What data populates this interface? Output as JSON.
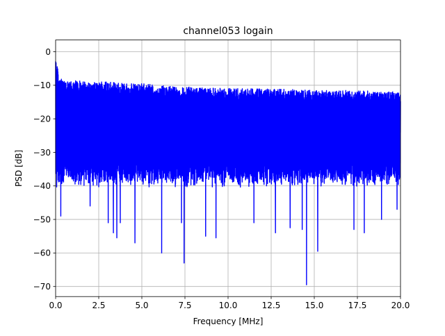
{
  "chart_data": {
    "type": "line",
    "title": "channel053 logain",
    "xlabel": "Frequency [MHz]",
    "ylabel": "PSD [dB]",
    "xlim": [
      0,
      20
    ],
    "ylim": [
      -73,
      3.5
    ],
    "grid": true,
    "x_ticks": [
      0,
      2.5,
      5,
      7.5,
      10,
      12.5,
      15,
      17.5,
      20
    ],
    "x_tick_labels": [
      "0.0",
      "2.5",
      "5.0",
      "7.5",
      "10.0",
      "12.5",
      "15.0",
      "17.5",
      "20.0"
    ],
    "y_ticks": [
      0,
      -10,
      -20,
      -30,
      -40,
      -50,
      -60,
      -70
    ],
    "y_tick_labels": [
      "0",
      "−10",
      "−20",
      "−30",
      "−40",
      "−50",
      "−60",
      "−70"
    ],
    "series": [
      {
        "color": "#0000ff",
        "description_upper_envelope": {
          "x": [
            0,
            0.05,
            0.15,
            0.3,
            0.6,
            1.0,
            2.0,
            3.0,
            4.0,
            5.0,
            6.0,
            7.5,
            10.0,
            12.5,
            15.0,
            17.5,
            20.0
          ],
          "y": [
            -2,
            -3,
            -6,
            -8,
            -9,
            -8.5,
            -9,
            -9,
            -9.5,
            -9.5,
            -10,
            -10.5,
            -11,
            -11,
            -11.5,
            -11.5,
            -12
          ]
        },
        "typical_lower_level": -39,
        "deep_dips": [
          {
            "x": 0.3,
            "y": -49
          },
          {
            "x": 2.0,
            "y": -46
          },
          {
            "x": 3.05,
            "y": -51
          },
          {
            "x": 3.35,
            "y": -54
          },
          {
            "x": 3.55,
            "y": -55.5
          },
          {
            "x": 3.75,
            "y": -51
          },
          {
            "x": 4.6,
            "y": -57
          },
          {
            "x": 6.15,
            "y": -60
          },
          {
            "x": 7.3,
            "y": -51
          },
          {
            "x": 7.45,
            "y": -63
          },
          {
            "x": 8.7,
            "y": -55
          },
          {
            "x": 9.3,
            "y": -55.5
          },
          {
            "x": 11.5,
            "y": -51
          },
          {
            "x": 12.75,
            "y": -54
          },
          {
            "x": 13.6,
            "y": -52.5
          },
          {
            "x": 14.3,
            "y": -53
          },
          {
            "x": 14.55,
            "y": -69.5
          },
          {
            "x": 15.2,
            "y": -59.5
          },
          {
            "x": 17.3,
            "y": -53
          },
          {
            "x": 17.9,
            "y": -54
          },
          {
            "x": 18.9,
            "y": -50
          },
          {
            "x": 19.8,
            "y": -47
          }
        ]
      }
    ]
  }
}
